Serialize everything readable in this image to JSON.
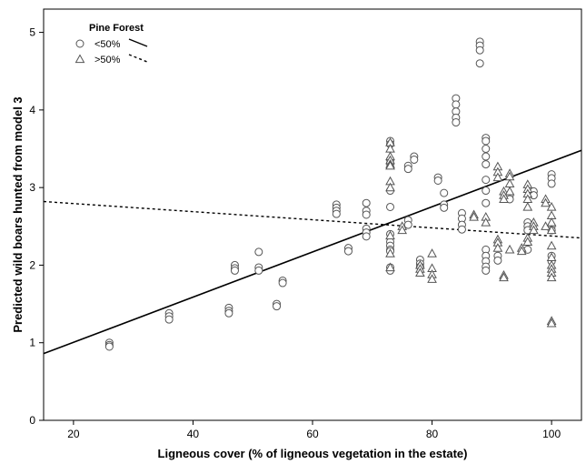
{
  "chart_data": {
    "type": "scatter",
    "title": "",
    "xlabel": "Ligneous cover (% of ligneous vegetation in the estate)",
    "ylabel": "Predicted wild boars hunted from model 3",
    "xlim": [
      15,
      105
    ],
    "ylim": [
      0,
      5.3
    ],
    "xticks": [
      20,
      40,
      60,
      80,
      100
    ],
    "yticks": [
      0,
      1,
      2,
      3,
      4,
      5
    ],
    "grid": false,
    "legend": {
      "title": "Pine Forest",
      "position": "top-left",
      "entries": [
        {
          "label": "<50%",
          "marker": "circle",
          "line": "solid"
        },
        {
          "label": ">50%",
          "marker": "triangle",
          "line": "dashed"
        }
      ]
    },
    "series": [
      {
        "name": "<50%",
        "marker": "circle",
        "points": [
          [
            26,
            1.0
          ],
          [
            26,
            0.97
          ],
          [
            26,
            0.95
          ],
          [
            36,
            1.38
          ],
          [
            36,
            1.34
          ],
          [
            36,
            1.3
          ],
          [
            46,
            1.45
          ],
          [
            46,
            1.41
          ],
          [
            46,
            1.38
          ],
          [
            47,
            2.0
          ],
          [
            47,
            1.96
          ],
          [
            47,
            1.93
          ],
          [
            51,
            2.17
          ],
          [
            51,
            1.97
          ],
          [
            51,
            1.93
          ],
          [
            54,
            1.5
          ],
          [
            54,
            1.47
          ],
          [
            55,
            1.8
          ],
          [
            55,
            1.77
          ],
          [
            64,
            2.78
          ],
          [
            64,
            2.74
          ],
          [
            64,
            2.7
          ],
          [
            64,
            2.66
          ],
          [
            66,
            2.22
          ],
          [
            66,
            2.18
          ],
          [
            69,
            2.8
          ],
          [
            69,
            2.7
          ],
          [
            69,
            2.65
          ],
          [
            69,
            2.47
          ],
          [
            69,
            2.42
          ],
          [
            69,
            2.37
          ],
          [
            73,
            3.6
          ],
          [
            73,
            3.56
          ],
          [
            73,
            3.36
          ],
          [
            73,
            3.31
          ],
          [
            73,
            2.96
          ],
          [
            73,
            2.75
          ],
          [
            73,
            2.4
          ],
          [
            73,
            2.3
          ],
          [
            73,
            2.25
          ],
          [
            73,
            2.2
          ],
          [
            73,
            2.18
          ],
          [
            73,
            1.97
          ],
          [
            73,
            1.93
          ],
          [
            76,
            3.28
          ],
          [
            76,
            3.24
          ],
          [
            76,
            2.58
          ],
          [
            76,
            2.52
          ],
          [
            77,
            3.4
          ],
          [
            77,
            3.36
          ],
          [
            78,
            2.07
          ],
          [
            78,
            2.02
          ],
          [
            78,
            1.98
          ],
          [
            81,
            3.13
          ],
          [
            81,
            3.09
          ],
          [
            82,
            2.93
          ],
          [
            82,
            2.78
          ],
          [
            82,
            2.74
          ],
          [
            84,
            4.15
          ],
          [
            84,
            4.07
          ],
          [
            84,
            3.98
          ],
          [
            84,
            3.9
          ],
          [
            84,
            3.84
          ],
          [
            85,
            2.67
          ],
          [
            85,
            2.6
          ],
          [
            85,
            2.52
          ],
          [
            85,
            2.46
          ],
          [
            88,
            4.88
          ],
          [
            88,
            4.83
          ],
          [
            88,
            4.77
          ],
          [
            88,
            4.6
          ],
          [
            89,
            3.64
          ],
          [
            89,
            3.6
          ],
          [
            89,
            3.5
          ],
          [
            89,
            3.4
          ],
          [
            89,
            3.3
          ],
          [
            89,
            3.1
          ],
          [
            89,
            2.96
          ],
          [
            89,
            2.8
          ],
          [
            89,
            2.2
          ],
          [
            89,
            2.12
          ],
          [
            89,
            2.05
          ],
          [
            89,
            1.98
          ],
          [
            89,
            1.93
          ],
          [
            91,
            2.12
          ],
          [
            91,
            2.06
          ],
          [
            93,
            2.9
          ],
          [
            93,
            2.85
          ],
          [
            96,
            2.55
          ],
          [
            96,
            2.5
          ],
          [
            96,
            2.45
          ],
          [
            96,
            2.2
          ],
          [
            97,
            2.95
          ],
          [
            97,
            2.9
          ],
          [
            100,
            3.17
          ],
          [
            100,
            3.12
          ],
          [
            100,
            3.05
          ],
          [
            100,
            2.5
          ],
          [
            100,
            2.45
          ],
          [
            100,
            2.12
          ],
          [
            100,
            2.05
          ]
        ]
      },
      {
        "name": ">50%",
        "marker": "triangle",
        "points": [
          [
            73,
            3.58
          ],
          [
            73,
            3.5
          ],
          [
            73,
            3.4
          ],
          [
            73,
            3.35
          ],
          [
            73,
            3.3
          ],
          [
            73,
            3.28
          ],
          [
            73,
            3.08
          ],
          [
            73,
            3.0
          ],
          [
            73,
            2.38
          ],
          [
            73,
            2.15
          ],
          [
            73,
            1.97
          ],
          [
            75,
            2.5
          ],
          [
            75,
            2.45
          ],
          [
            78,
            2.0
          ],
          [
            78,
            1.95
          ],
          [
            78,
            1.9
          ],
          [
            80,
            2.15
          ],
          [
            80,
            1.96
          ],
          [
            80,
            1.88
          ],
          [
            80,
            1.82
          ],
          [
            87,
            2.65
          ],
          [
            87,
            2.62
          ],
          [
            89,
            2.62
          ],
          [
            89,
            2.55
          ],
          [
            91,
            3.27
          ],
          [
            91,
            3.2
          ],
          [
            91,
            3.13
          ],
          [
            91,
            2.33
          ],
          [
            91,
            2.29
          ],
          [
            91,
            2.22
          ],
          [
            92,
            2.95
          ],
          [
            92,
            2.9
          ],
          [
            92,
            2.85
          ],
          [
            92,
            1.87
          ],
          [
            92,
            1.84
          ],
          [
            93,
            3.18
          ],
          [
            93,
            3.14
          ],
          [
            93,
            3.05
          ],
          [
            93,
            2.95
          ],
          [
            93,
            2.2
          ],
          [
            95,
            2.22
          ],
          [
            95,
            2.18
          ],
          [
            96,
            3.04
          ],
          [
            96,
            2.98
          ],
          [
            96,
            2.92
          ],
          [
            96,
            2.85
          ],
          [
            96,
            2.75
          ],
          [
            96,
            2.35
          ],
          [
            96,
            2.3
          ],
          [
            97,
            2.55
          ],
          [
            97,
            2.5
          ],
          [
            97,
            2.45
          ],
          [
            99,
            2.85
          ],
          [
            99,
            2.8
          ],
          [
            99,
            2.5
          ],
          [
            100,
            2.75
          ],
          [
            100,
            2.64
          ],
          [
            100,
            2.55
          ],
          [
            100,
            2.45
          ],
          [
            100,
            2.25
          ],
          [
            100,
            2.1
          ],
          [
            100,
            2.0
          ],
          [
            100,
            1.95
          ],
          [
            100,
            1.9
          ],
          [
            100,
            1.84
          ],
          [
            100,
            1.28
          ],
          [
            100,
            1.25
          ]
        ]
      }
    ],
    "fit_lines": [
      {
        "name": "<50%",
        "style": "solid",
        "x": [
          15,
          105
        ],
        "y": [
          0.86,
          3.48
        ]
      },
      {
        "name": ">50%",
        "style": "dashed",
        "x": [
          15,
          105
        ],
        "y": [
          2.82,
          2.35
        ]
      }
    ]
  }
}
